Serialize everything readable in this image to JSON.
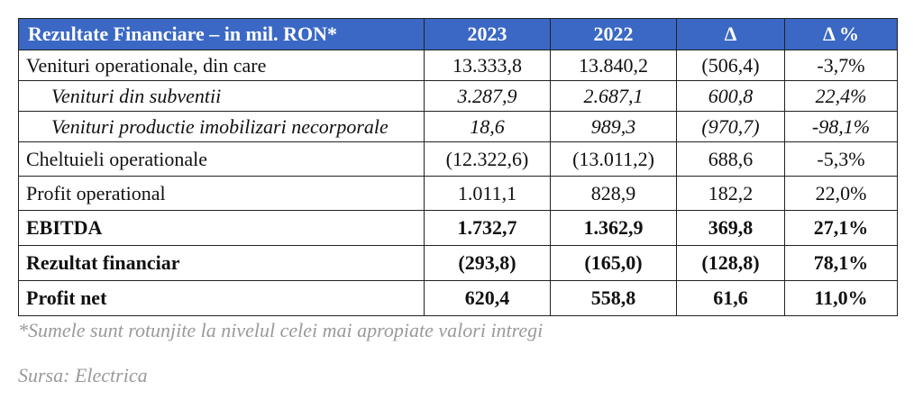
{
  "table": {
    "headers": [
      "Rezultate Financiare – in mil. RON*",
      "2023",
      "2022",
      "Δ",
      "Δ %"
    ],
    "rows": [
      {
        "cells": [
          "Venituri operationale, din care",
          "13.333,8",
          "13.840,2",
          "(506,4)",
          "-3,7%"
        ],
        "style": "normal"
      },
      {
        "cells": [
          "Venituri din subventii",
          "3.287,9",
          "2.687,1",
          "600,8",
          "22,4%"
        ],
        "style": "italic-indented"
      },
      {
        "cells": [
          "Venituri productie imobilizari necorporale",
          "18,6",
          "989,3",
          "(970,7)",
          "-98,1%"
        ],
        "style": "italic-indented"
      },
      {
        "cells": [
          "Cheltuieli operationale",
          "(12.322,6)",
          "(13.011,2)",
          "688,6",
          "-5,3%"
        ],
        "style": "normal"
      },
      {
        "cells": [
          "Profit operational",
          "1.011,1",
          "828,9",
          "182,2",
          "22,0%"
        ],
        "style": "normal"
      },
      {
        "cells": [
          "EBITDA",
          "1.732,7",
          "1.362,9",
          "369,8",
          "27,1%"
        ],
        "style": "bold"
      },
      {
        "cells": [
          "Rezultat financiar",
          "(293,8)",
          "(165,0)",
          "(128,8)",
          "78,1%"
        ],
        "style": "bold"
      },
      {
        "cells": [
          "Profit net",
          "620,4",
          "558,8",
          "61,6",
          "11,0%"
        ],
        "style": "bold"
      }
    ]
  },
  "footnote": "*Sumele sunt rotunjite la nivelul celei mai apropiate valori intregi",
  "source": "Sursa: Electrica",
  "colors": {
    "header_bg": "#3a68c4",
    "header_text": "#ffffff",
    "note_text": "#9a9a9a"
  }
}
